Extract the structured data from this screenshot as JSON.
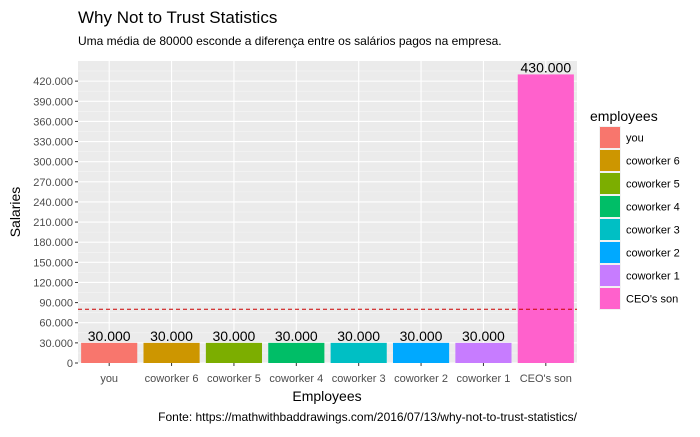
{
  "chart_data": {
    "type": "bar",
    "title": "Why Not to Trust Statistics",
    "subtitle": "Uma média de 80000 esconde a diferença entre os salários pagos na empresa.",
    "caption": "Fonte: https://mathwithbaddrawings.com/2016/07/13/why-not-to-trust-statistics/",
    "xlabel": "Employees",
    "ylabel": "Salaries",
    "categories": [
      "you",
      "coworker 6",
      "coworker 5",
      "coworker 4",
      "coworker 3",
      "coworker 2",
      "coworker 1",
      "CEO's son"
    ],
    "values": [
      30000,
      30000,
      30000,
      30000,
      30000,
      30000,
      30000,
      430000
    ],
    "data_labels": [
      "30.000",
      "30.000",
      "30.000",
      "30.000",
      "30.000",
      "30.000",
      "30.000",
      "430.000"
    ],
    "colors": [
      "#F8766D",
      "#CD9600",
      "#7CAE00",
      "#00BE67",
      "#00BFC4",
      "#00A9FF",
      "#C77CFF",
      "#FF61CC"
    ],
    "ylim": [
      0,
      450000
    ],
    "yticks": [
      0,
      30000,
      60000,
      90000,
      120000,
      150000,
      180000,
      210000,
      240000,
      270000,
      300000,
      330000,
      360000,
      390000,
      420000
    ],
    "ytick_labels": [
      "0",
      "30.000",
      "60.000",
      "90.000",
      "120.000",
      "150.000",
      "180.000",
      "210.000",
      "240.000",
      "270.000",
      "300.000",
      "330.000",
      "360.000",
      "390.000",
      "420.000"
    ],
    "reference_line": {
      "value": 80000,
      "color": "#CC0000",
      "style": "dashed"
    },
    "grid": true,
    "legend": {
      "title": "employees",
      "placement": "right",
      "entries": [
        "you",
        "coworker 6",
        "coworker 5",
        "coworker 4",
        "coworker 3",
        "coworker 2",
        "coworker 1",
        "CEO's son"
      ]
    }
  }
}
